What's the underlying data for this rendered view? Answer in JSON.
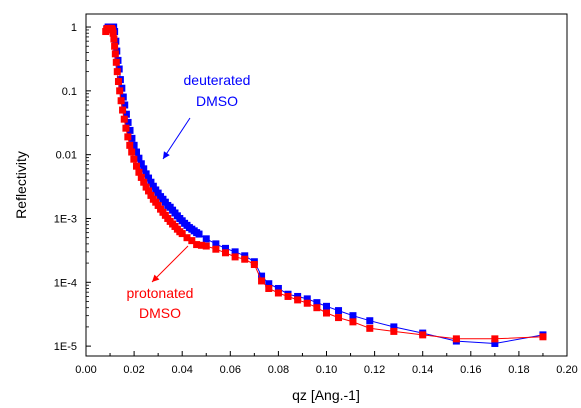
{
  "chart_data": {
    "type": "scatter",
    "title": "",
    "xlabel": "qz [Ang.-1]",
    "ylabel": "Reflectivity",
    "xlim": [
      0.0,
      0.2
    ],
    "ylim": [
      7e-06,
      1.6
    ],
    "yscale": "log",
    "grid": false,
    "x_ticks": [
      0.0,
      0.02,
      0.04,
      0.06,
      0.08,
      0.1,
      0.12,
      0.14,
      0.16,
      0.18,
      0.2
    ],
    "x_tick_labels": [
      "0.00",
      "0.02",
      "0.04",
      "0.06",
      "0.08",
      "0.10",
      "0.12",
      "0.14",
      "0.16",
      "0.18",
      "0.20"
    ],
    "y_ticks": [
      1,
      0.1,
      0.01,
      0.001,
      0.0001,
      1e-05
    ],
    "y_tick_labels": [
      "1",
      "0.1",
      "0.01",
      "1E-3",
      "1E-4",
      "1E-5"
    ],
    "series": [
      {
        "name": "deuterated DMSO",
        "color": "#0000ff",
        "marker": "square",
        "connect": true,
        "x": [
          0.0087,
          0.0092,
          0.0097,
          0.0103,
          0.0109,
          0.0115,
          0.0119,
          0.0124,
          0.0128,
          0.0133,
          0.0138,
          0.0143,
          0.0149,
          0.0155,
          0.0161,
          0.0168,
          0.0175,
          0.0183,
          0.0191,
          0.02,
          0.021,
          0.022,
          0.023,
          0.024,
          0.025,
          0.026,
          0.027,
          0.028,
          0.029,
          0.03,
          0.031,
          0.032,
          0.033,
          0.034,
          0.035,
          0.036,
          0.037,
          0.038,
          0.039,
          0.04,
          0.041,
          0.042,
          0.043,
          0.044,
          0.045,
          0.046,
          0.047,
          0.05,
          0.054,
          0.058,
          0.062,
          0.066,
          0.07,
          0.073,
          0.076,
          0.08,
          0.084,
          0.088,
          0.092,
          0.096,
          0.1,
          0.105,
          0.111,
          0.118,
          0.128,
          0.14,
          0.154,
          0.17,
          0.19
        ],
        "y": [
          0.95,
          1.0,
          1.0,
          1.0,
          1.0,
          1.0,
          0.85,
          0.6,
          0.42,
          0.3,
          0.22,
          0.15,
          0.11,
          0.08,
          0.06,
          0.043,
          0.032,
          0.024,
          0.018,
          0.014,
          0.011,
          0.0088,
          0.0072,
          0.006,
          0.005,
          0.0043,
          0.0037,
          0.0032,
          0.0028,
          0.0025,
          0.0022,
          0.002,
          0.0018,
          0.0016,
          0.0015,
          0.00135,
          0.00122,
          0.0011,
          0.001,
          0.00092,
          0.00084,
          0.00078,
          0.00072,
          0.00068,
          0.00064,
          0.0006,
          0.00057,
          0.00048,
          0.0004,
          0.00034,
          0.0003,
          0.00026,
          0.00021,
          0.000125,
          9.5e-05,
          8e-05,
          6.5e-05,
          6e-05,
          5.5e-05,
          4.8e-05,
          4.2e-05,
          3.6e-05,
          3e-05,
          2.5e-05,
          2e-05,
          1.6e-05,
          1.2e-05,
          1.1e-05,
          1.5e-05
        ]
      },
      {
        "name": "protonated DMSO",
        "color": "#ff0000",
        "marker": "square",
        "connect": true,
        "x": [
          0.0082,
          0.0086,
          0.009,
          0.0094,
          0.0098,
          0.0102,
          0.0106,
          0.011,
          0.0113,
          0.0116,
          0.0119,
          0.0122,
          0.0126,
          0.013,
          0.0135,
          0.014,
          0.0146,
          0.0152,
          0.0159,
          0.0166,
          0.0174,
          0.0182,
          0.019,
          0.0199,
          0.021,
          0.022,
          0.023,
          0.024,
          0.025,
          0.026,
          0.027,
          0.028,
          0.029,
          0.03,
          0.031,
          0.032,
          0.033,
          0.034,
          0.035,
          0.036,
          0.037,
          0.038,
          0.039,
          0.04,
          0.042,
          0.044,
          0.046,
          0.048,
          0.05,
          0.054,
          0.058,
          0.062,
          0.066,
          0.07,
          0.073,
          0.076,
          0.08,
          0.084,
          0.088,
          0.092,
          0.096,
          0.1,
          0.105,
          0.111,
          0.118,
          0.128,
          0.14,
          0.154,
          0.17,
          0.19
        ],
        "y": [
          0.85,
          0.92,
          0.95,
          0.95,
          0.95,
          0.95,
          0.95,
          0.9,
          0.8,
          0.65,
          0.5,
          0.38,
          0.28,
          0.2,
          0.14,
          0.1,
          0.07,
          0.05,
          0.036,
          0.026,
          0.019,
          0.014,
          0.011,
          0.0085,
          0.0066,
          0.0053,
          0.0044,
          0.0037,
          0.0031,
          0.0027,
          0.0023,
          0.002,
          0.0018,
          0.0016,
          0.0014,
          0.00125,
          0.00112,
          0.001,
          0.0009,
          0.00082,
          0.00075,
          0.00068,
          0.00062,
          0.00058,
          0.0005,
          0.00045,
          0.00039,
          0.00038,
          0.00037,
          0.00033,
          0.00029,
          0.00025,
          0.00023,
          0.00019,
          0.000105,
          8e-05,
          6.8e-05,
          6e-05,
          5.3e-05,
          4.7e-05,
          4e-05,
          3.3e-05,
          2.8e-05,
          2.4e-05,
          1.9e-05,
          1.7e-05,
          1.5e-05,
          1.3e-05,
          1.3e-05,
          1.4e-05
        ]
      }
    ],
    "annotations": [
      {
        "series": "deuterated DMSO",
        "lines": [
          "deuterated",
          "DMSO"
        ],
        "color": "#0000ff",
        "arrow_to": {
          "x": 0.031,
          "y": 0.0088
        }
      },
      {
        "series": "protonated DMSO",
        "lines": [
          "protonated",
          "DMSO"
        ],
        "color": "#ff0000",
        "arrow_to": {
          "x": 0.046,
          "y": 0.00057
        }
      }
    ]
  }
}
